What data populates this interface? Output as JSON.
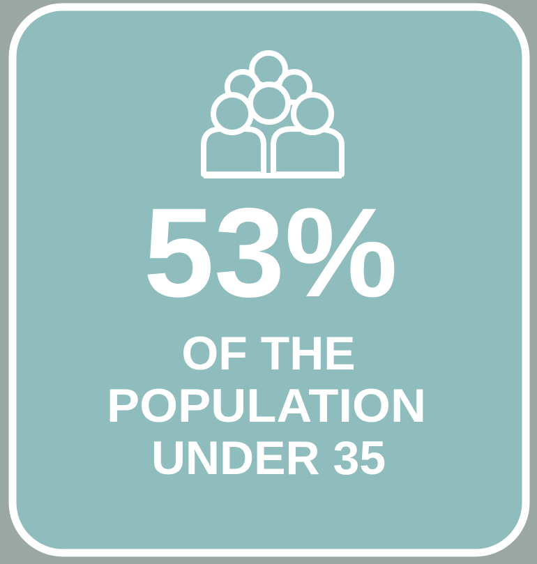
{
  "stat": "53%",
  "caption": [
    "OF THE",
    "POPULATION",
    "UNDER 35"
  ]
}
